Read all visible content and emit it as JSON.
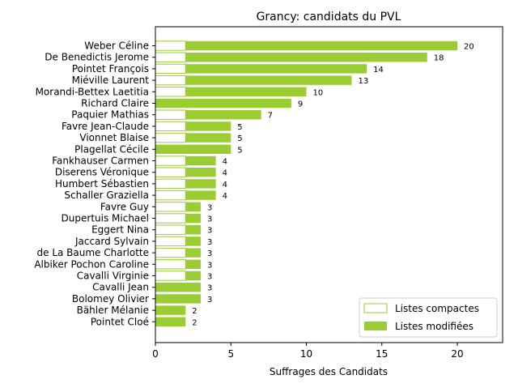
{
  "chart_data": {
    "type": "bar",
    "orientation": "horizontal",
    "stacked": true,
    "title": "Grancy: candidats du PVL",
    "xlabel": "Suffrages des Candidats",
    "ylabel": "",
    "xlim": [
      0,
      23
    ],
    "xticks": [
      "0",
      "5",
      "10",
      "15",
      "20"
    ],
    "categories": [
      "Weber Céline",
      "De Benedictis Jerome",
      "Pointet François",
      "Miéville Laurent",
      "Morandi-Bettex Laetitia",
      "Richard Claire",
      "Paquier Mathias",
      "Favre Jean-Claude",
      "Vionnet Blaise",
      "Plagellat Cécile",
      "Fankhauser Carmen",
      "Diserens Véronique",
      "Humbert Sébastien",
      "Schaller Graziella",
      "Favre Guy",
      "Dupertuis Michael",
      "Eggert Nina",
      "Jaccard Sylvain",
      "de La Baume Charlotte",
      "Albiker Pochon Caroline",
      "Cavalli Virginie",
      "Cavalli Jean",
      "Bolomey Olivier",
      "Bähler Mélanie",
      "Pointet Cloé"
    ],
    "series": [
      {
        "name": "Listes compactes",
        "color": "#9acd32",
        "fill": "none",
        "values": [
          2,
          2,
          2,
          2,
          2,
          0,
          2,
          2,
          2,
          0,
          2,
          2,
          2,
          2,
          2,
          2,
          2,
          2,
          2,
          2,
          2,
          0,
          0,
          0,
          0
        ]
      },
      {
        "name": "Listes modifiées",
        "color": "#9acd32",
        "fill": "solid",
        "values": [
          18,
          16,
          12,
          11,
          8,
          9,
          5,
          3,
          3,
          5,
          2,
          2,
          2,
          2,
          1,
          1,
          1,
          1,
          1,
          1,
          1,
          3,
          3,
          2,
          2
        ]
      }
    ],
    "totals": [
      "20",
      "18",
      "14",
      "13",
      "10",
      "9",
      "7",
      "5",
      "5",
      "5",
      "4",
      "4",
      "4",
      "4",
      "3",
      "3",
      "3",
      "3",
      "3",
      "3",
      "3",
      "3",
      "3",
      "2",
      "2"
    ],
    "legend_position": "lower-right",
    "grid": false
  }
}
